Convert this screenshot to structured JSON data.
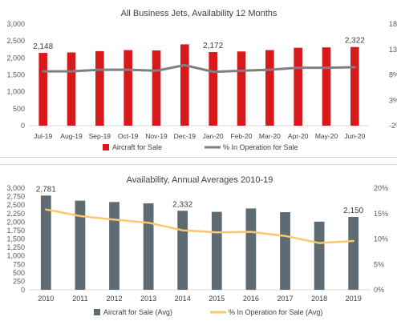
{
  "chart_data": [
    {
      "type": "bar+line",
      "title": "All Business Jets, Availability 12 Months",
      "categories": [
        "Jul-19",
        "Aug-19",
        "Sep-19",
        "Oct-19",
        "Nov-19",
        "Dec-19",
        "Jan-20",
        "Feb-20",
        "Mar-20",
        "Apr-20",
        "May-20",
        "Jun-20"
      ],
      "series": [
        {
          "name": "Aircraft for Sale",
          "type": "bar",
          "axis": "left",
          "color": "#d7191c",
          "values": [
            2148,
            2160,
            2200,
            2230,
            2220,
            2400,
            2172,
            2190,
            2230,
            2300,
            2310,
            2322
          ]
        },
        {
          "name": "% In Operation for Sale",
          "type": "line",
          "axis": "right",
          "color": "#7f7f7f",
          "values": [
            8.7,
            8.7,
            9.0,
            9.0,
            8.8,
            9.9,
            8.6,
            8.8,
            9.0,
            9.4,
            9.4,
            9.5
          ]
        }
      ],
      "ylim_left": [
        0,
        3000
      ],
      "yticks_left": [
        "0",
        "500",
        "1,000",
        "1,500",
        "2,000",
        "2,500",
        "3,000"
      ],
      "ylim_right": [
        -2,
        18
      ],
      "yticks_right": [
        "-2%",
        "3%",
        "8%",
        "13%",
        "18%"
      ],
      "yticks_right_values": [
        -2,
        3,
        8,
        13,
        18
      ],
      "data_labels": [
        {
          "index": 0,
          "text": "2,148"
        },
        {
          "index": 6,
          "text": "2,172"
        },
        {
          "index": 11,
          "text": "2,322"
        }
      ],
      "legend_position": "bottom",
      "grid": false
    },
    {
      "type": "bar+line",
      "title": "Availability, Annual Averages 2010-19",
      "categories": [
        "2010",
        "2011",
        "2012",
        "2013",
        "2014",
        "2015",
        "2016",
        "2017",
        "2018",
        "2019"
      ],
      "series": [
        {
          "name": "Aircraft for Sale (Avg)",
          "type": "bar",
          "axis": "left",
          "color": "#5f6b73",
          "values": [
            2781,
            2630,
            2590,
            2550,
            2332,
            2300,
            2400,
            2290,
            2010,
            2150
          ]
        },
        {
          "name": "% In Operation for Sale (Avg)",
          "type": "line",
          "axis": "right",
          "color": "#f7c96a",
          "values": [
            15.8,
            14.5,
            13.8,
            13.2,
            11.7,
            11.3,
            11.4,
            10.6,
            9.2,
            9.6
          ]
        }
      ],
      "ylim_left": [
        0,
        3000
      ],
      "yticks_left": [
        "0",
        "250",
        "500",
        "750",
        "1,000",
        "1,250",
        "1,500",
        "1,750",
        "2,000",
        "2,250",
        "2,500",
        "2,750",
        "3,000"
      ],
      "ylim_right": [
        0,
        20
      ],
      "yticks_right": [
        "0%",
        "5%",
        "10%",
        "15%",
        "20%"
      ],
      "yticks_right_values": [
        0,
        5,
        10,
        15,
        20
      ],
      "data_labels": [
        {
          "index": 0,
          "text": "2,781"
        },
        {
          "index": 4,
          "text": "2,332"
        },
        {
          "index": 9,
          "text": "2,150"
        }
      ],
      "legend_position": "bottom",
      "grid": false
    }
  ]
}
